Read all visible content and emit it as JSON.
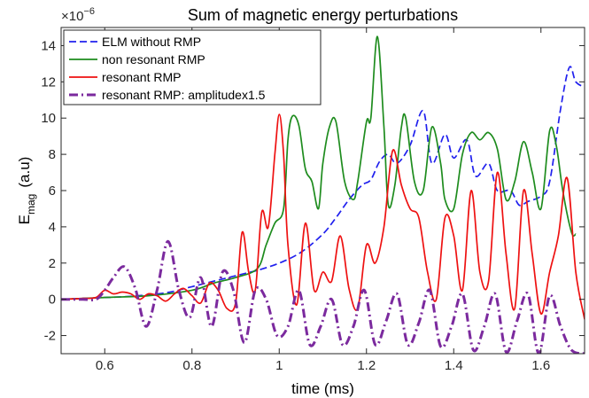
{
  "chart_data": {
    "type": "line",
    "title": "Sum of magnetic energy perturbations",
    "xlabel": "time (ms)",
    "ylabel_base": "E",
    "ylabel_sub": "mag",
    "ylabel_unit": "(a.u)",
    "y_exponent_base": "×10",
    "y_exponent_power": "−6",
    "xlim": [
      0.5,
      1.7
    ],
    "ylim": [
      -3,
      15
    ],
    "x_ticks": [
      0.6,
      0.8,
      1.0,
      1.2,
      1.4,
      1.6
    ],
    "x_tick_labels": [
      "0.6",
      "0.8",
      "1",
      "1.2",
      "1.4",
      "1.6"
    ],
    "y_ticks": [
      -2,
      0,
      2,
      4,
      6,
      8,
      10,
      12,
      14
    ],
    "y_tick_labels": [
      "-2",
      "0",
      "2",
      "4",
      "6",
      "8",
      "10",
      "12",
      "14"
    ],
    "grid": false,
    "legend_position": "top-left",
    "series": [
      {
        "name": "ELM without RMP",
        "color": "#2020ee",
        "style": "dashed",
        "x": [
          0.5,
          0.55,
          0.6,
          0.65,
          0.7,
          0.75,
          0.8,
          0.85,
          0.9,
          0.95,
          1.0,
          1.05,
          1.1,
          1.13,
          1.16,
          1.19,
          1.21,
          1.23,
          1.25,
          1.27,
          1.3,
          1.33,
          1.35,
          1.38,
          1.4,
          1.43,
          1.45,
          1.48,
          1.5,
          1.53,
          1.55,
          1.57,
          1.6,
          1.62,
          1.645,
          1.665,
          1.68,
          1.7
        ],
        "y": [
          0,
          0.05,
          0.1,
          0.15,
          0.25,
          0.4,
          0.7,
          1.0,
          1.3,
          1.6,
          2.0,
          2.6,
          3.6,
          4.5,
          5.5,
          6.3,
          6.6,
          7.6,
          8.0,
          7.5,
          8.5,
          10.4,
          7.5,
          9.1,
          7.8,
          8.8,
          6.8,
          7.5,
          6.0,
          6.0,
          5.2,
          5.4,
          5.7,
          6.5,
          10.5,
          12.8,
          12.0,
          11.7
        ]
      },
      {
        "name": "non resonant RMP",
        "color": "#1e8c1e",
        "style": "solid",
        "x": [
          0.5,
          0.6,
          0.7,
          0.8,
          0.85,
          0.9,
          0.95,
          0.97,
          0.99,
          1.01,
          1.02,
          1.03,
          1.045,
          1.06,
          1.075,
          1.09,
          1.1,
          1.115,
          1.13,
          1.15,
          1.17,
          1.18,
          1.2,
          1.21,
          1.225,
          1.24,
          1.25,
          1.265,
          1.28,
          1.29,
          1.31,
          1.33,
          1.35,
          1.37,
          1.38,
          1.4,
          1.42,
          1.44,
          1.46,
          1.48,
          1.5,
          1.52,
          1.54,
          1.56,
          1.58,
          1.6,
          1.62,
          1.635,
          1.65,
          1.67,
          1.68
        ],
        "y": [
          0,
          0.1,
          0.2,
          0.5,
          0.9,
          1.2,
          1.7,
          3.0,
          4.2,
          5.0,
          8.8,
          10.1,
          9.6,
          7.2,
          6.5,
          5.0,
          7.5,
          9.5,
          9.8,
          6.5,
          5.5,
          6.5,
          9.8,
          10.0,
          14.5,
          9.5,
          5.2,
          6.3,
          9.5,
          10.0,
          6.5,
          6.0,
          9.5,
          7.5,
          5.5,
          5.0,
          8.0,
          9.2,
          8.8,
          9.2,
          8.3,
          5.5,
          6.5,
          8.7,
          7.0,
          5.0,
          9.3,
          8.5,
          6.0,
          3.7,
          3.6
        ]
      },
      {
        "name": "resonant RMP",
        "color": "#ee1111",
        "style": "solid",
        "x": [
          0.5,
          0.55,
          0.58,
          0.6,
          0.62,
          0.64,
          0.66,
          0.68,
          0.7,
          0.72,
          0.74,
          0.76,
          0.78,
          0.8,
          0.82,
          0.84,
          0.86,
          0.88,
          0.9,
          0.915,
          0.93,
          0.945,
          0.96,
          0.975,
          0.99,
          1.0,
          1.01,
          1.02,
          1.04,
          1.06,
          1.08,
          1.1,
          1.12,
          1.14,
          1.16,
          1.18,
          1.2,
          1.22,
          1.24,
          1.26,
          1.28,
          1.3,
          1.32,
          1.34,
          1.36,
          1.38,
          1.4,
          1.42,
          1.44,
          1.46,
          1.48,
          1.5,
          1.52,
          1.54,
          1.56,
          1.58,
          1.6,
          1.62,
          1.64,
          1.66,
          1.68,
          1.7
        ],
        "y": [
          0,
          0.05,
          0.1,
          0.5,
          0.3,
          0.4,
          0.3,
          0,
          0.3,
          0.2,
          -0.1,
          0.3,
          0.6,
          0.2,
          -0.2,
          0.9,
          0.5,
          -0.5,
          -0.2,
          3.7,
          1.5,
          0.5,
          4.8,
          4.0,
          8.0,
          10.2,
          8.0,
          3.0,
          -0.3,
          4.2,
          0.5,
          1.5,
          1.0,
          3.5,
          0.6,
          -0.5,
          3.0,
          2.0,
          4.0,
          8.2,
          6.3,
          5.0,
          4.5,
          1.5,
          0,
          4.5,
          3.5,
          0.5,
          6.0,
          1.5,
          1.0,
          7.0,
          2.5,
          -0.5,
          6.0,
          2.5,
          -0.8,
          1.5,
          3.5,
          6.7,
          1.5,
          -1.1
        ]
      },
      {
        "name": "resonant RMP: amplitudex1.5",
        "color": "#7b2a9e",
        "style": "dash-dot",
        "x": [
          0.5,
          0.55,
          0.58,
          0.6,
          0.62,
          0.645,
          0.67,
          0.695,
          0.72,
          0.745,
          0.77,
          0.795,
          0.82,
          0.845,
          0.87,
          0.895,
          0.92,
          0.945,
          0.97,
          0.995,
          1.02,
          1.045,
          1.07,
          1.095,
          1.12,
          1.145,
          1.17,
          1.195,
          1.22,
          1.245,
          1.27,
          1.295,
          1.32,
          1.345,
          1.37,
          1.395,
          1.42,
          1.445,
          1.47,
          1.495,
          1.52,
          1.545,
          1.57,
          1.595,
          1.62,
          1.645,
          1.67,
          1.7
        ],
        "y": [
          0,
          0,
          0,
          0.5,
          1.2,
          1.8,
          0.6,
          -1.5,
          0.5,
          3.2,
          0.5,
          -1.0,
          1.2,
          -1.5,
          1.5,
          0.5,
          -2.4,
          0.5,
          0,
          -2.0,
          -1.5,
          0.5,
          -2.5,
          -1.5,
          0,
          -2.5,
          -1.5,
          0.5,
          -2.5,
          -1.2,
          0.3,
          -2.5,
          -1.3,
          0.5,
          -2.6,
          -1.5,
          0.3,
          -2.8,
          -1.5,
          0.3,
          -2.9,
          -1.2,
          0.3,
          -3.0,
          0.2,
          -1.5,
          -2.8,
          -3.0
        ]
      }
    ]
  }
}
